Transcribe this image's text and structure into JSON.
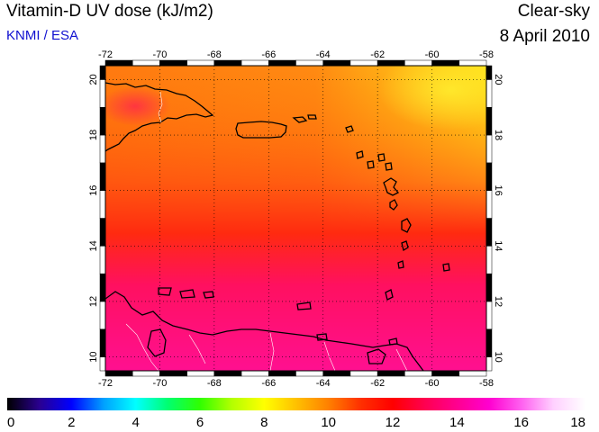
{
  "header": {
    "title": "Vitamin-D UV dose (kJ/m2)",
    "credit": "KNMI / ESA",
    "sky": "Clear-sky",
    "date": "8 April 2010"
  },
  "colors": {
    "credit": "#1010d0",
    "coast": "#000000",
    "border": "#ffffff",
    "grid": "#000000"
  },
  "map": {
    "lon_range": [
      -72,
      -58
    ],
    "lat_range": [
      9.5,
      20.5
    ],
    "lon_ticks": [
      "-72",
      "-70",
      "-68",
      "-66",
      "-64",
      "-62",
      "-60",
      "-58"
    ],
    "lat_ticks": [
      "10",
      "12",
      "14",
      "16",
      "18",
      "20"
    ],
    "field_colors": {
      "north_west": "#ff7a10",
      "north_east": "#ffe21a",
      "center": "#ff2a10",
      "south": "#ff1090"
    }
  },
  "colorbar": {
    "min": 0,
    "max": 18,
    "labels": [
      "0",
      "2",
      "4",
      "6",
      "8",
      "10",
      "12",
      "14",
      "16",
      "18"
    ],
    "stops": [
      "#000000",
      "#2a0090",
      "#0000ff",
      "#00a0ff",
      "#00ffff",
      "#00ff70",
      "#30ff00",
      "#b4ff00",
      "#ffff00",
      "#ffc000",
      "#ff8000",
      "#ff3000",
      "#ff0000",
      "#ff0050",
      "#ff0090",
      "#ff00d0",
      "#ff60f0",
      "#ffd0ff",
      "#ffffff"
    ]
  }
}
